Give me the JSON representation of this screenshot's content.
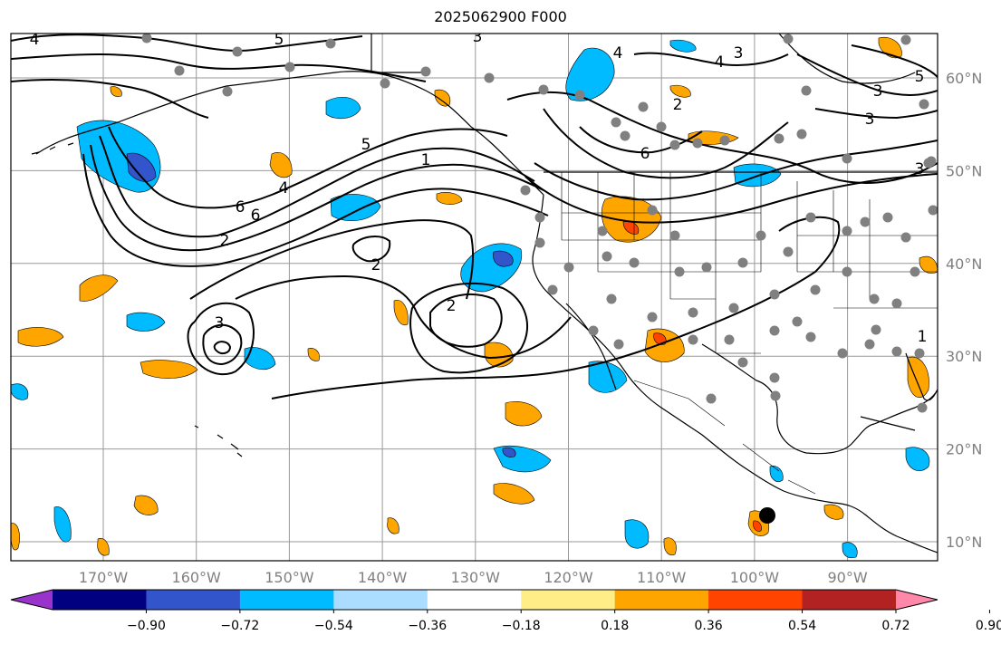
{
  "title": "2025062900 F000",
  "lon_ticks": [
    {
      "lon": -170,
      "label": "170°W"
    },
    {
      "lon": -160,
      "label": "160°W"
    },
    {
      "lon": -150,
      "label": "150°W"
    },
    {
      "lon": -140,
      "label": "140°W"
    },
    {
      "lon": -130,
      "label": "130°W"
    },
    {
      "lon": -120,
      "label": "120°W"
    },
    {
      "lon": -110,
      "label": "110°W"
    },
    {
      "lon": -100,
      "label": "100°W"
    },
    {
      "lon": -90,
      "label": "90°W"
    }
  ],
  "lat_ticks": [
    {
      "lat": 60,
      "label": "60°N"
    },
    {
      "lat": 50,
      "label": "50°N"
    },
    {
      "lat": 40,
      "label": "40°N"
    },
    {
      "lat": 30,
      "label": "30°N"
    },
    {
      "lat": 20,
      "label": "20°N"
    },
    {
      "lat": 10,
      "label": "10°N"
    }
  ],
  "colorbar": {
    "colors": [
      "#9933cc",
      "#000080",
      "#3355cc",
      "#00bbff",
      "#aaddff",
      "#ffffff",
      "#ffee88",
      "#ffa500",
      "#ff4400",
      "#b22222",
      "#ff88aa"
    ],
    "labels": [
      "−0.90",
      "−0.72",
      "−0.54",
      "−0.36",
      "−0.18",
      "0.18",
      "0.36",
      "0.54",
      "0.72",
      "0.90"
    ]
  },
  "contour_labels": [
    "4",
    "5",
    "3",
    "4",
    "3",
    "5",
    "6",
    "4",
    "2",
    "2",
    "5",
    "1",
    "6",
    "4",
    "6",
    "3",
    "2",
    "2",
    "3",
    "3",
    "3",
    "1"
  ],
  "colors": {
    "land_outline": "#000000",
    "grid": "#999999",
    "station": "#808080",
    "marker": "#000000"
  }
}
